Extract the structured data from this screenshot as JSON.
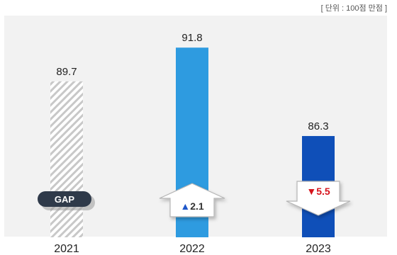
{
  "unit_note": "[ 단위 : 100점 만점 ]",
  "gap_label": "GAP",
  "colors": {
    "background_panel": "#f2f2f2",
    "hatch": "#c8c8c8",
    "bar_2022": "#2e9be0",
    "bar_2023": "#0f4fb8",
    "gap_pill": "#2f3a4a",
    "up_arrow_text": "#1f57c9",
    "down_arrow_text": "#d6131c"
  },
  "chart_data": {
    "type": "bar",
    "categories": [
      "2021",
      "2022",
      "2023"
    ],
    "values": [
      89.7,
      91.8,
      86.3
    ],
    "data_labels": [
      "89.7",
      "91.8",
      "86.3"
    ],
    "ylim": [
      80,
      93
    ],
    "bar_styles": [
      "hatched",
      "solid",
      "solid"
    ],
    "changes": [
      {
        "category": "2022",
        "direction": "up",
        "symbol": "▲",
        "value": "2.1"
      },
      {
        "category": "2023",
        "direction": "down",
        "symbol": "▼",
        "value": "5.5"
      }
    ],
    "title": "",
    "xlabel": "",
    "ylabel": ""
  }
}
